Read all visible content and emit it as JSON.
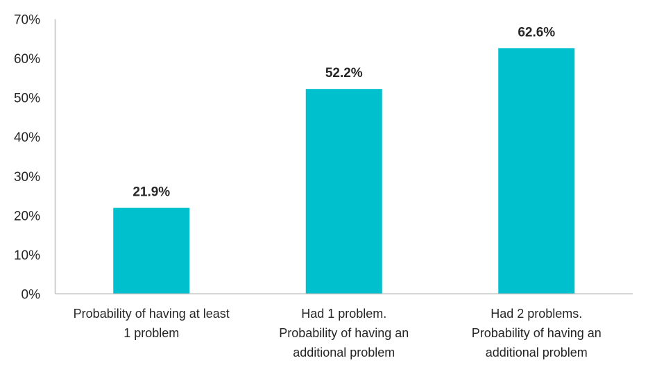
{
  "chart_data": {
    "type": "bar",
    "categories": [
      [
        "Probability of having at least",
        "1 problem"
      ],
      [
        "Had 1 problem.",
        "Probability of having an",
        "additional problem"
      ],
      [
        "Had 2 problems.",
        "Probability of having an",
        "additional problem"
      ]
    ],
    "values": [
      21.9,
      52.2,
      62.6
    ],
    "data_labels": [
      "21.9%",
      "52.2%",
      "62.6%"
    ],
    "ylim": [
      0,
      70
    ],
    "yticks": [
      0,
      10,
      20,
      30,
      40,
      50,
      60,
      70
    ],
    "ytick_labels": [
      "0%",
      "10%",
      "20%",
      "30%",
      "40%",
      "50%",
      "60%",
      "70%"
    ],
    "title": "",
    "xlabel": "",
    "ylabel": "",
    "grid": false,
    "legend": "none",
    "bar_color": "#00C0CD",
    "axis_color": "#BFBFBF"
  }
}
